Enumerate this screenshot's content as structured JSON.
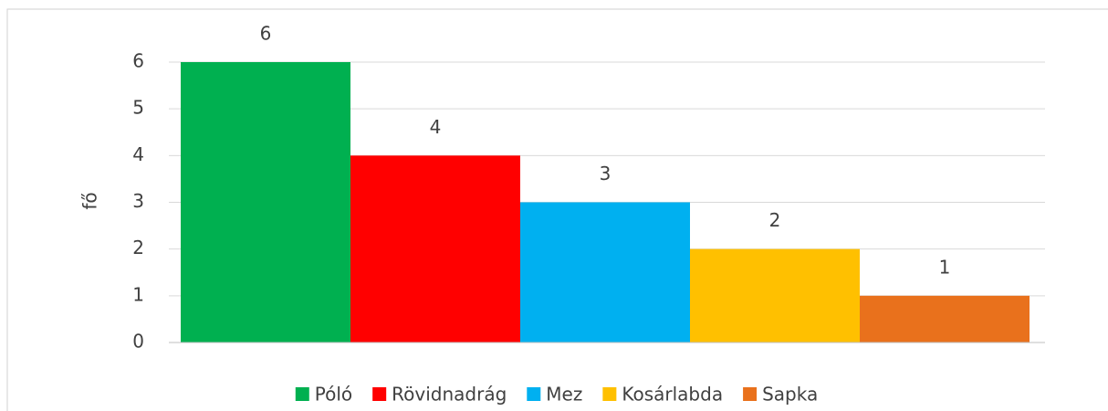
{
  "chart_data": {
    "type": "bar",
    "y_label": "fő",
    "categories": [
      null
    ],
    "series": [
      {
        "name": "Póló",
        "color": "#00b050",
        "values": [
          6
        ]
      },
      {
        "name": "Rövidnadrág",
        "color": "#ff0000",
        "values": [
          4
        ]
      },
      {
        "name": "Mez",
        "color": "#00b0f0",
        "values": [
          3
        ]
      },
      {
        "name": "Kosárlabda",
        "color": "#ffc000",
        "values": [
          2
        ]
      },
      {
        "name": "Sapka",
        "color": "#e9711c",
        "values": [
          1
        ]
      }
    ],
    "ylim": [
      0,
      6
    ],
    "yticks": [
      0,
      1,
      2,
      3,
      4,
      5,
      6
    ],
    "grid": true,
    "legend": "bottom"
  }
}
